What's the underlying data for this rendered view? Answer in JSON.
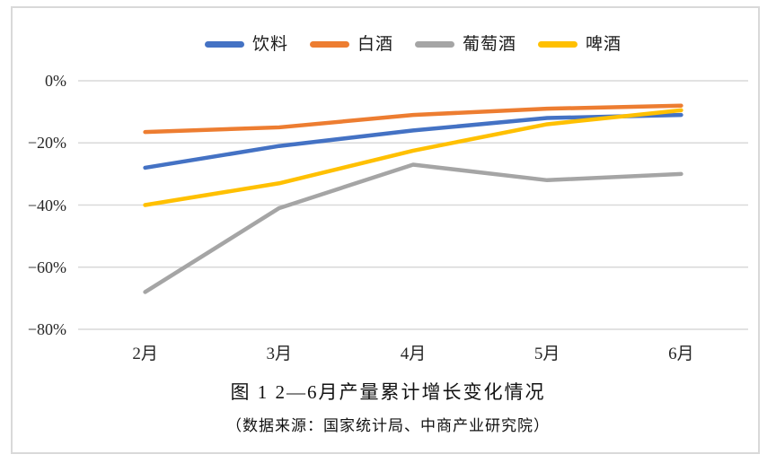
{
  "chart_data": {
    "type": "line",
    "title": "图 1  2—6月产量累计增长变化情况",
    "subtitle": "（数据来源：国家统计局、中商产业研究院）",
    "categories": [
      "2月",
      "3月",
      "4月",
      "5月",
      "6月"
    ],
    "series": [
      {
        "name": "饮料",
        "color": "#4472C4",
        "values": [
          -28,
          -21,
          -16,
          -12,
          -11
        ]
      },
      {
        "name": "白酒",
        "color": "#ED7D31",
        "values": [
          -16.5,
          -15,
          -11,
          -9,
          -8
        ]
      },
      {
        "name": "葡萄酒",
        "color": "#A5A5A5",
        "values": [
          -68,
          -41,
          -27,
          -32,
          -30
        ]
      },
      {
        "name": "啤酒",
        "color": "#FFC000",
        "values": [
          -40,
          -33,
          -22.5,
          -14,
          -9.5
        ]
      }
    ],
    "y_ticks": [
      {
        "label": "0%",
        "value": 0
      },
      {
        "label": "−20%",
        "value": -20
      },
      {
        "label": "−40%",
        "value": -40
      },
      {
        "label": "−60%",
        "value": -60
      },
      {
        "label": "−80%",
        "value": -80
      }
    ],
    "ylim": [
      -80,
      0
    ],
    "xlabel": "",
    "ylabel": "",
    "grid": true,
    "legend_position": "top",
    "gridline_color": "#D9D9D9",
    "background_color": "#FFFFFF",
    "border_color": "#D9D9D9"
  }
}
